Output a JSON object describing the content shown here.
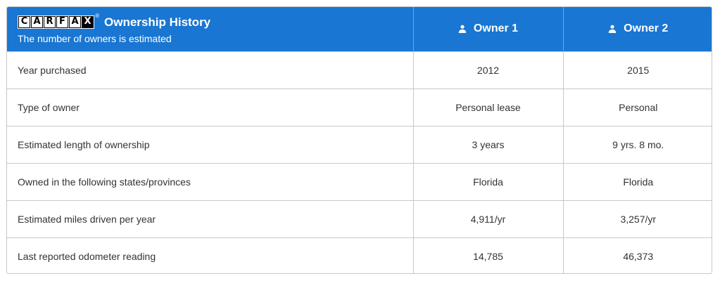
{
  "header": {
    "logo_letters": [
      "C",
      "A",
      "R",
      "F",
      "A",
      "X"
    ],
    "logo_registered": "®",
    "title": "Ownership History",
    "subtitle": "The number of owners is estimated",
    "owners": [
      {
        "label": "Owner 1",
        "icon": "person-icon"
      },
      {
        "label": "Owner 2",
        "icon": "person-icon"
      }
    ]
  },
  "rows": [
    {
      "label": "Year purchased",
      "owner1": "2012",
      "owner2": "2015"
    },
    {
      "label": "Type of owner",
      "owner1": "Personal lease",
      "owner2": "Personal"
    },
    {
      "label": "Estimated length of ownership",
      "owner1": "3 years",
      "owner2": "9 yrs. 8 mo."
    },
    {
      "label": "Owned in the following states/provinces",
      "owner1": "Florida",
      "owner2": "Florida"
    },
    {
      "label": "Estimated miles driven per year",
      "owner1": "4,911/yr",
      "owner2": "3,257/yr"
    },
    {
      "label": "Last reported odometer reading",
      "owner1": "14,785",
      "owner2": "46,373"
    }
  ],
  "colors": {
    "header_bg": "#1976d2",
    "border": "#c8c8c8",
    "text": "#333333"
  }
}
